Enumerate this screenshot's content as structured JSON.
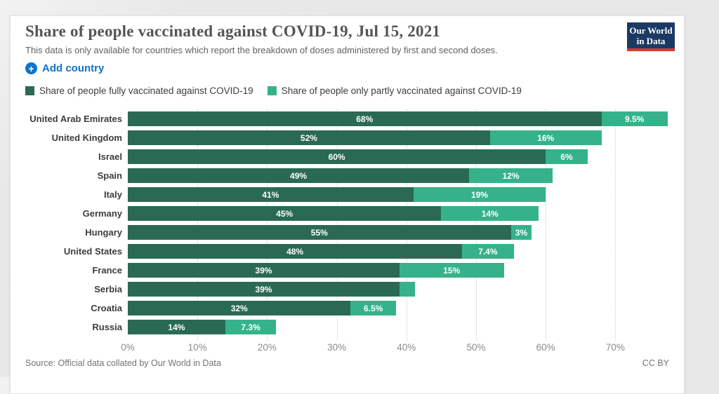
{
  "header": {
    "title": "Share of people vaccinated against COVID-19, Jul 15, 2021",
    "subtitle": "This data is only available for countries which report the breakdown of doses administered by first and second doses.",
    "logo": {
      "line1": "Our World",
      "line2": "in Data",
      "bg": "#1b3a63",
      "stripe": "#d73832"
    }
  },
  "controls": {
    "add_country_label": "Add country",
    "accent_blue": "#0d73cc"
  },
  "legend": [
    {
      "label": "Share of people fully vaccinated against COVID-19",
      "color": "#2a6a55"
    },
    {
      "label": "Share of people only partly vaccinated against COVID-19",
      "color": "#35b28a"
    }
  ],
  "chart_data": {
    "type": "bar",
    "orientation": "horizontal",
    "stacked": true,
    "categories": [
      "United Arab Emirates",
      "United Kingdom",
      "Israel",
      "Spain",
      "Italy",
      "Germany",
      "Hungary",
      "United States",
      "France",
      "Serbia",
      "Croatia",
      "Russia"
    ],
    "series": [
      {
        "name": "Share of people fully vaccinated against COVID-19",
        "color": "#2a6a55",
        "values": [
          68,
          52,
          60,
          49,
          41,
          45,
          55,
          48,
          39,
          39,
          32,
          14
        ],
        "labels": [
          "68%",
          "52%",
          "60%",
          "49%",
          "41%",
          "45%",
          "55%",
          "48%",
          "39%",
          "39%",
          "32%",
          "14%"
        ]
      },
      {
        "name": "Share of people only partly vaccinated against COVID-19",
        "color": "#35b28a",
        "values": [
          9.5,
          16,
          6,
          12,
          19,
          14,
          3,
          7.4,
          15,
          2.2,
          6.5,
          7.3
        ],
        "labels": [
          "9.5%",
          "16%",
          "6%",
          "12%",
          "19%",
          "14%",
          "3%",
          "7.4%",
          "15%",
          "",
          "6.5%",
          "7.3%"
        ]
      }
    ],
    "x_ticks": [
      "0%",
      "10%",
      "20%",
      "30%",
      "40%",
      "50%",
      "60%",
      "70%"
    ],
    "x_tick_values": [
      0,
      10,
      20,
      30,
      40,
      50,
      60,
      70
    ],
    "xlim": [
      0,
      78
    ],
    "grid": "dotted-vertical",
    "legend_position": "top"
  },
  "footer": {
    "source": "Source: Official data collated by Our World in Data",
    "license": "CC BY"
  }
}
